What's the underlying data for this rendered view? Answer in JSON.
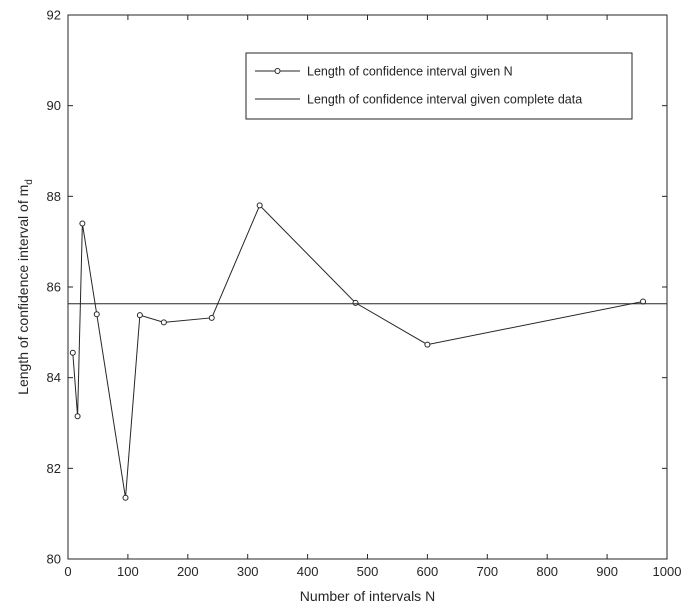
{
  "chart_data": {
    "type": "line",
    "xlabel": "Number of intervals N",
    "ylabel_main": "Length of confidence interval of m",
    "ylabel_sub": "d",
    "xlim": [
      0,
      1000
    ],
    "ylim": [
      80,
      92
    ],
    "xticks": [
      0,
      100,
      200,
      300,
      400,
      500,
      600,
      700,
      800,
      900,
      1000
    ],
    "yticks": [
      80,
      82,
      84,
      86,
      88,
      90,
      92
    ],
    "grid": false,
    "legend_position": "top-right",
    "series": [
      {
        "name": "Length of confidence interval given N",
        "marker": "circle",
        "x": [
          8,
          16,
          24,
          48,
          96,
          120,
          160,
          240,
          320,
          480,
          600,
          960
        ],
        "y": [
          84.55,
          83.15,
          87.4,
          85.4,
          81.35,
          85.38,
          85.22,
          85.32,
          87.8,
          85.65,
          84.73,
          85.68
        ]
      },
      {
        "name": "Length of confidence interval given complete data",
        "marker": "none",
        "x": [
          0,
          1000
        ],
        "y": [
          85.63,
          85.63
        ]
      }
    ]
  }
}
